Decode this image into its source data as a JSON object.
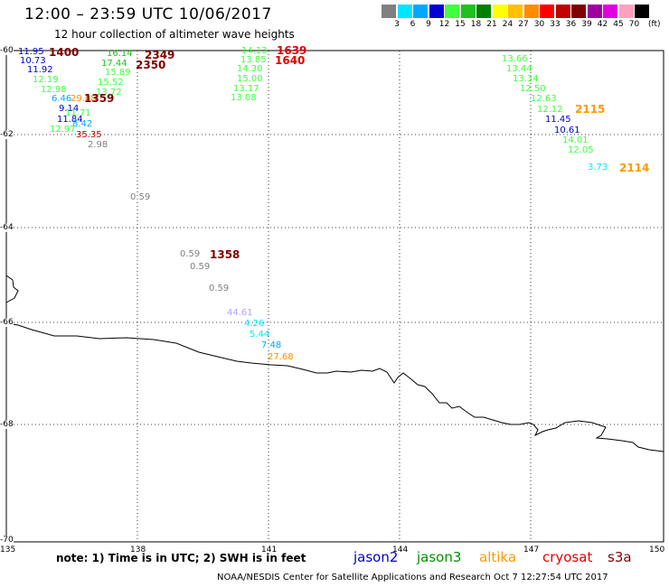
{
  "title": "12:00 – 23:59 UTC 10/06/2017",
  "subtitle": "12 hour collection of altimeter wave heights",
  "legend": {
    "unit": "(ft)",
    "items": [
      {
        "label": "3",
        "color": "#808080"
      },
      {
        "label": "6",
        "color": "#00e5ff"
      },
      {
        "label": "9",
        "color": "#00a8ff"
      },
      {
        "label": "12",
        "color": "#0000d0"
      },
      {
        "label": "15",
        "color": "#40ff40"
      },
      {
        "label": "18",
        "color": "#20c020"
      },
      {
        "label": "21",
        "color": "#008000"
      },
      {
        "label": "24",
        "color": "#ffff00"
      },
      {
        "label": "27",
        "color": "#ffc000"
      },
      {
        "label": "30",
        "color": "#ff8c00"
      },
      {
        "label": "33",
        "color": "#ff0000"
      },
      {
        "label": "36",
        "color": "#c00000"
      },
      {
        "label": "39",
        "color": "#800000"
      },
      {
        "label": "42",
        "color": "#a000a0"
      },
      {
        "label": "45",
        "color": "#e000e0"
      },
      {
        "label": "70",
        "color": "#ffa0c0"
      },
      {
        "label": "",
        "color": "#000000"
      }
    ]
  },
  "axes": {
    "lon_ticks": [
      "135",
      "138",
      "141",
      "144",
      "147",
      "150"
    ],
    "lat_ticks": [
      "-60",
      "-62",
      "-64",
      "-66",
      "-68",
      "-70"
    ]
  },
  "note": "note: 1) Time is in UTC; 2) SWH is in feet",
  "satellites": [
    {
      "name": "jason2",
      "color": "#0000c0"
    },
    {
      "name": "jason3",
      "color": "#009000"
    },
    {
      "name": "altika",
      "color": "#ff9900"
    },
    {
      "name": "cryosat",
      "color": "#e00000"
    },
    {
      "name": "s3a",
      "color": "#800000"
    }
  ],
  "credit": "NOAA/NESDIS Center for Satellite Applications and Research    Oct  7 12:27:54 UTC 2017",
  "observations": [
    {
      "text": "11.95",
      "color": "#0000d0"
    },
    {
      "text": "10.73",
      "color": "#0000d0"
    },
    {
      "text": "11.92",
      "color": "#0000d0"
    },
    {
      "text": "12.19",
      "color": "#40ff40"
    },
    {
      "text": "12.98",
      "color": "#40ff40"
    },
    {
      "text": "6.46",
      "color": "#00a8ff"
    },
    {
      "text": "9.14",
      "color": "#0000d0"
    },
    {
      "text": "11.71",
      "color": "#40ff40"
    },
    {
      "text": "11.84",
      "color": "#0000d0"
    },
    {
      "text": "8.42",
      "color": "#00a8ff"
    },
    {
      "text": "12.97",
      "color": "#40ff40"
    },
    {
      "text": "35.35",
      "color": "#c00000"
    },
    {
      "text": "2.98",
      "color": "#808080"
    },
    {
      "text": "29.08",
      "color": "#ff8c00"
    },
    {
      "text": "16.14",
      "color": "#20c020"
    },
    {
      "text": "17.44",
      "color": "#20c020"
    },
    {
      "text": "15.89",
      "color": "#40ff40"
    },
    {
      "text": "15.52",
      "color": "#40ff40"
    },
    {
      "text": "13.72",
      "color": "#40ff40"
    },
    {
      "text": "0.59",
      "color": "#808080"
    },
    {
      "text": "14.13",
      "color": "#40ff40"
    },
    {
      "text": "13.85",
      "color": "#40ff40"
    },
    {
      "text": "14.30",
      "color": "#40ff40"
    },
    {
      "text": "15.00",
      "color": "#40ff40"
    },
    {
      "text": "13.17",
      "color": "#40ff40"
    },
    {
      "text": "13.08",
      "color": "#40ff40"
    },
    {
      "text": "0.59",
      "color": "#808080"
    },
    {
      "text": "0.59",
      "color": "#808080"
    },
    {
      "text": "0.59",
      "color": "#808080"
    },
    {
      "text": "44.61",
      "color": "#b0a0ff"
    },
    {
      "text": "4.26",
      "color": "#00e5ff"
    },
    {
      "text": "5.44",
      "color": "#00e5ff"
    },
    {
      "text": "7.48",
      "color": "#00a8ff"
    },
    {
      "text": "27.68",
      "color": "#ff8c00"
    },
    {
      "text": "13.66",
      "color": "#40ff40"
    },
    {
      "text": "13.44",
      "color": "#40ff40"
    },
    {
      "text": "13.34",
      "color": "#40ff40"
    },
    {
      "text": "12.50",
      "color": "#40ff40"
    },
    {
      "text": "12.63",
      "color": "#40ff40"
    },
    {
      "text": "12.12",
      "color": "#40ff40"
    },
    {
      "text": "11.45",
      "color": "#0000d0"
    },
    {
      "text": "10.61",
      "color": "#0000d0"
    },
    {
      "text": "14.01",
      "color": "#40ff40"
    },
    {
      "text": "12.05",
      "color": "#40ff40"
    },
    {
      "text": "3.73",
      "color": "#00e5ff"
    }
  ],
  "pass_times": [
    {
      "text": "1400",
      "color": "#800000"
    },
    {
      "text": "1359",
      "color": "#800000"
    },
    {
      "text": "2349",
      "color": "#800000"
    },
    {
      "text": "2350",
      "color": "#800000"
    },
    {
      "text": "1639",
      "color": "#e00000"
    },
    {
      "text": "1640",
      "color": "#e00000"
    },
    {
      "text": "1358",
      "color": "#800000"
    },
    {
      "text": "2115",
      "color": "#ff9900"
    },
    {
      "text": "2114",
      "color": "#ff9900"
    }
  ]
}
